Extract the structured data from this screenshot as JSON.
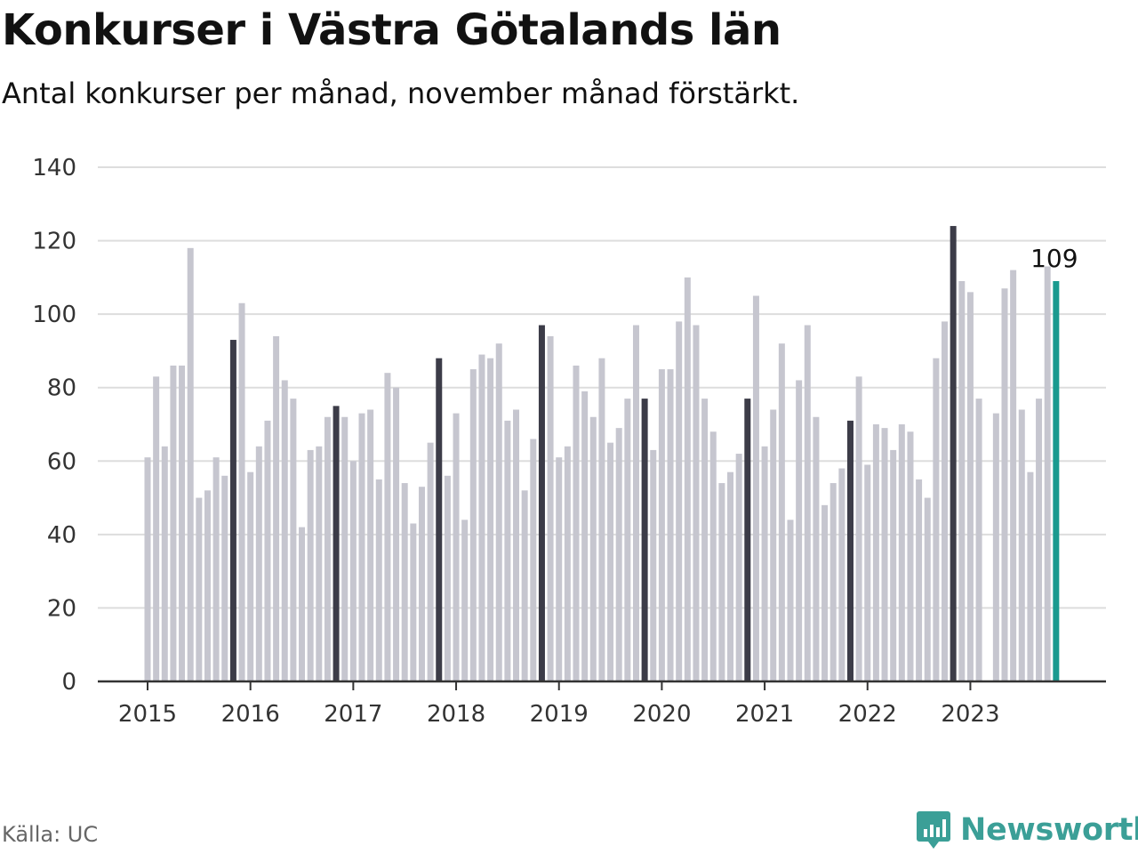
{
  "title": "Konkurser i Västra Götalands län",
  "subtitle": "Antal konkurser per månad, november månad förstärkt.",
  "source": "Källa: UC",
  "brand": "Newsworthy",
  "colors": {
    "bar": "#c6c6cf",
    "highlight": "#3c3c48",
    "latest": "#1a9a8f",
    "grid": "#dddddd",
    "axis": "#333333",
    "brand": "#3b9f97"
  },
  "chart_data": {
    "type": "bar",
    "ylim": [
      0,
      140
    ],
    "yticks": [
      0,
      20,
      40,
      60,
      80,
      100,
      120,
      140
    ],
    "xtick_labels": [
      "2015",
      "2016",
      "2017",
      "2018",
      "2019",
      "2020",
      "2021",
      "2022",
      "2023"
    ],
    "start": "2015-01",
    "end": "2023-11",
    "highlight_month": "November",
    "values": [
      61,
      83,
      64,
      86,
      86,
      118,
      50,
      52,
      61,
      56,
      93,
      103,
      57,
      64,
      71,
      94,
      82,
      77,
      42,
      63,
      64,
      72,
      75,
      72,
      60,
      73,
      74,
      55,
      84,
      80,
      54,
      43,
      53,
      65,
      88,
      56,
      73,
      44,
      85,
      89,
      88,
      92,
      71,
      74,
      52,
      66,
      97,
      94,
      61,
      64,
      86,
      79,
      72,
      88,
      65,
      69,
      77,
      97,
      77,
      63,
      85,
      85,
      98,
      110,
      97,
      77,
      68,
      54,
      57,
      62,
      77,
      105,
      64,
      74,
      92,
      44,
      82,
      97,
      72,
      48,
      54,
      58,
      71,
      83,
      59,
      70,
      69,
      63,
      70,
      68,
      55,
      50,
      88,
      98,
      124,
      109,
      106,
      77,
      0,
      73,
      107,
      112,
      74,
      57,
      77,
      113,
      109
    ],
    "annotation": "109"
  }
}
